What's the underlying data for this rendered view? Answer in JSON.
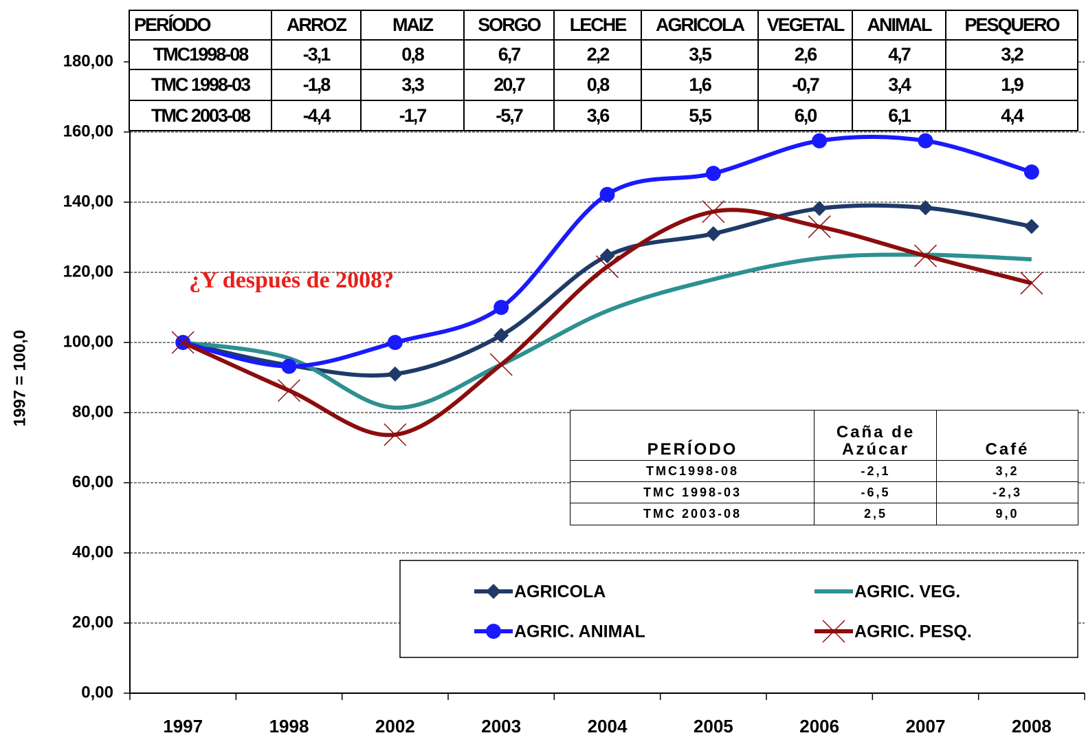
{
  "chart_data": {
    "type": "line",
    "y_label": "1997 = 100,0",
    "annotation": "¿Y después de 2008?",
    "categories": [
      "1997",
      "1998",
      "2002",
      "2003",
      "2004",
      "2005",
      "2006",
      "2007",
      "2008"
    ],
    "series": [
      {
        "name": "AGRICOLA",
        "color": "#1f3a68",
        "marker": "diamond",
        "values": [
          100,
          93.5,
          91,
          102,
          124.7,
          131,
          138.2,
          138.4,
          133.1
        ]
      },
      {
        "name": "AGRIC. VEG.",
        "color": "#2e9090",
        "marker": "none",
        "values": [
          100,
          95.5,
          81.4,
          93.7,
          109,
          118,
          124,
          125,
          123.7
        ]
      },
      {
        "name": "AGRIC. ANIMAL",
        "color": "#1a1aff",
        "marker": "circle",
        "values": [
          100,
          93.2,
          100,
          110,
          142.2,
          148.2,
          157.5,
          157.5,
          148.6
        ]
      },
      {
        "name": "AGRIC. PESQ.",
        "color": "#8b0d0d",
        "marker": "x",
        "values": [
          100,
          86.3,
          73.7,
          93.7,
          121.6,
          137.3,
          133,
          124.7,
          116.9
        ]
      }
    ],
    "ylim": [
      0,
      180
    ],
    "yticks": [
      {
        "value": 0,
        "label": "0,00"
      },
      {
        "value": 20,
        "label": "20,00"
      },
      {
        "value": 40,
        "label": "40,00"
      },
      {
        "value": 60,
        "label": "60,00"
      },
      {
        "value": 80,
        "label": "80,00"
      },
      {
        "value": 100,
        "label": "100,00"
      },
      {
        "value": 120,
        "label": "120,00"
      },
      {
        "value": 140,
        "label": "140,00"
      },
      {
        "value": 160,
        "label": "160,00"
      },
      {
        "value": 180,
        "label": "180,00"
      }
    ],
    "grid": true,
    "top_table": {
      "header": [
        "PERÍODO",
        "ARROZ",
        "MAIZ",
        "SORGO",
        "LECHE",
        "AGRICOLA",
        "VEGETAL",
        "ANIMAL",
        "PESQUERO"
      ],
      "rows": [
        [
          "TMC1998-08",
          "-3,1",
          "0,8",
          "6,7",
          "2,2",
          "3,5",
          "2,6",
          "4,7",
          "3,2"
        ],
        [
          "TMC 1998-03",
          "-1,8",
          "3,3",
          "20,7",
          "0,8",
          "1,6",
          "-0,7",
          "3,4",
          "1,9"
        ],
        [
          "TMC 2003-08",
          "-4,4",
          "-1,7",
          "-5,7",
          "3,6",
          "5,5",
          "6,0",
          "6,1",
          "4,4"
        ]
      ]
    },
    "bottom_table": {
      "header": [
        "PERÍODO",
        "Caña de Azúcar",
        "Café"
      ],
      "rows": [
        [
          "TMC1998-08",
          "-2,1",
          "3,2"
        ],
        [
          "TMC 1998-03",
          "-6,5",
          "-2,3"
        ],
        [
          "TMC 2003-08",
          "2,5",
          "9,0"
        ]
      ]
    }
  }
}
